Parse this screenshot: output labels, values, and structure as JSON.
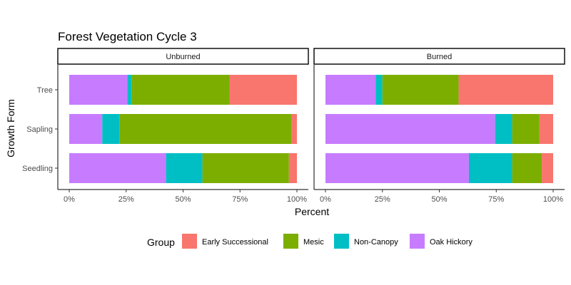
{
  "chart_data": {
    "type": "bar",
    "orientation": "horizontal",
    "stacked": "percent",
    "title": "Forest Vegetation Cycle 3",
    "xlabel": "Percent",
    "ylabel": "Growth Form",
    "xlim": [
      0,
      100
    ],
    "x_ticks": [
      "0%",
      "25%",
      "50%",
      "75%",
      "100%"
    ],
    "categories": [
      "Tree",
      "Sapling",
      "Seedling"
    ],
    "legend": {
      "title": "Group",
      "position": "bottom"
    },
    "series_order": [
      "Oak Hickory",
      "Non-Canopy",
      "Mesic",
      "Early Successional"
    ],
    "legend_order": [
      "Early Successional",
      "Mesic",
      "Non-Canopy",
      "Oak Hickory"
    ],
    "colors": {
      "Early Successional": "#F8766D",
      "Mesic": "#7CAE00",
      "Non-Canopy": "#00BFC4",
      "Oak Hickory": "#C77CFF"
    },
    "panels": [
      {
        "name": "Unburned",
        "values": {
          "Tree": {
            "Oak Hickory": 25.5,
            "Non-Canopy": 2.0,
            "Mesic": 43.0,
            "Early Successional": 29.5
          },
          "Sapling": {
            "Oak Hickory": 14.5,
            "Non-Canopy": 7.5,
            "Mesic": 75.5,
            "Early Successional": 2.5
          },
          "Seedling": {
            "Oak Hickory": 42.5,
            "Non-Canopy": 16.0,
            "Mesic": 38.0,
            "Early Successional": 3.5
          }
        }
      },
      {
        "name": "Burned",
        "values": {
          "Tree": {
            "Oak Hickory": 22.0,
            "Non-Canopy": 3.0,
            "Mesic": 33.5,
            "Early Successional": 41.5
          },
          "Sapling": {
            "Oak Hickory": 74.5,
            "Non-Canopy": 7.5,
            "Mesic": 12.0,
            "Early Successional": 6.0
          },
          "Seedling": {
            "Oak Hickory": 63.0,
            "Non-Canopy": 19.0,
            "Mesic": 13.0,
            "Early Successional": 5.0
          }
        }
      }
    ],
    "grid": false,
    "theme": "classic with panel borders"
  }
}
